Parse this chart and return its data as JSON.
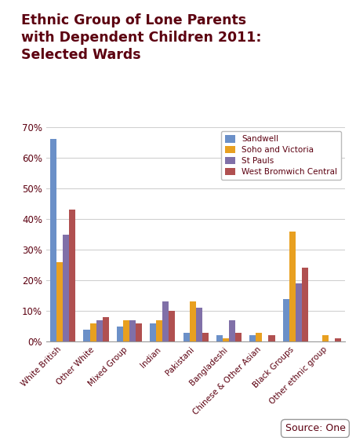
{
  "title_line1": "Ethnic Group of Lone Parents",
  "title_line2": "with Dependent Children 2011:",
  "title_line3": "Selected Wards",
  "categories": [
    "White British",
    "Other White",
    "Mixed Group",
    "Indian",
    "Pakistani",
    "Bangladeshi",
    "Chinese & Other Asian",
    "Black Groups",
    "Other ethnic group"
  ],
  "series": {
    "Sandwell": [
      0.66,
      0.04,
      0.05,
      0.06,
      0.03,
      0.02,
      0.02,
      0.14,
      0.0
    ],
    "Soho and Victoria": [
      0.26,
      0.06,
      0.07,
      0.07,
      0.13,
      0.01,
      0.03,
      0.36,
      0.02
    ],
    "St Pauls": [
      0.35,
      0.07,
      0.07,
      0.13,
      0.11,
      0.07,
      0.0,
      0.19,
      0.0
    ],
    "West Bromwich Central": [
      0.43,
      0.08,
      0.06,
      0.1,
      0.03,
      0.03,
      0.02,
      0.24,
      0.01
    ]
  },
  "colors": {
    "Sandwell": "#6B90C8",
    "Soho and Victoria": "#E8A020",
    "St Pauls": "#8070A8",
    "West Bromwich Central": "#B05050"
  },
  "ylim": [
    0,
    0.7
  ],
  "yticks": [
    0.0,
    0.1,
    0.2,
    0.3,
    0.4,
    0.5,
    0.6,
    0.7
  ],
  "ytick_labels": [
    "0%",
    "10%",
    "20%",
    "30%",
    "40%",
    "50%",
    "60%",
    "70%"
  ],
  "source_text": "Source: One",
  "title_color": "#5C0010",
  "title_fontsize": 12.5,
  "tick_label_color": "#5C0010",
  "background_color": "#FFFFFF",
  "grid_color": "#D0D0D0"
}
